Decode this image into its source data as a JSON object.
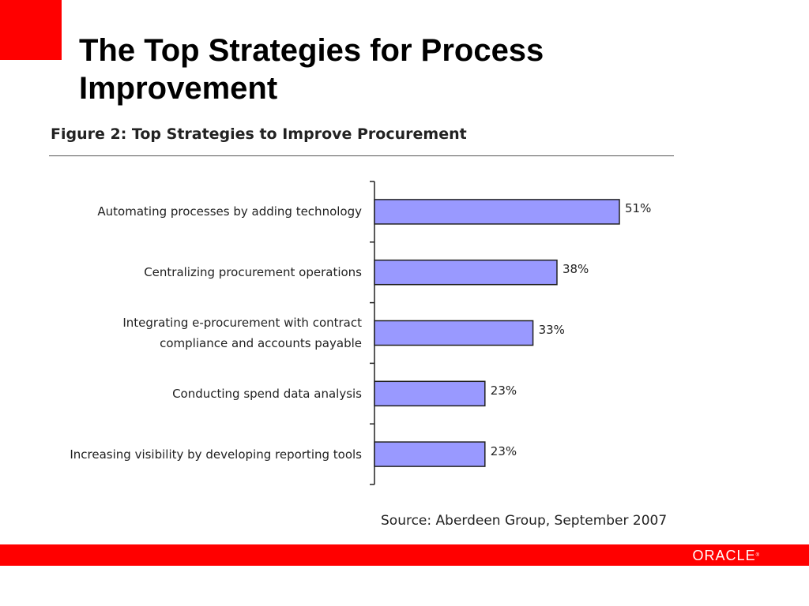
{
  "slide": {
    "title": "The Top Strategies for Process Improvement",
    "logo_text": "ORACLE",
    "logo_mark": "®"
  },
  "colors": {
    "accent": "#ff0000",
    "bar_fill": "#9999ff",
    "bar_stroke": "#222222"
  },
  "chart_data": {
    "type": "bar",
    "orientation": "horizontal",
    "title": "Figure 2: Top Strategies to Improve Procurement",
    "categories": [
      "Automating processes by adding technology",
      "Centralizing procurement operations",
      "Integrating e-procurement with contract compliance and accounts payable",
      "Conducting spend data analysis",
      "Increasing visibility by developing reporting tools"
    ],
    "values": [
      51,
      38,
      33,
      23,
      23
    ],
    "value_labels": [
      "51%",
      "38%",
      "33%",
      "23%",
      "23%"
    ],
    "xlabel": "",
    "ylabel": "",
    "xlim": [
      0,
      100
    ],
    "grid": false,
    "legend": "none",
    "source": "Source: Aberdeen Group, September 2007"
  }
}
